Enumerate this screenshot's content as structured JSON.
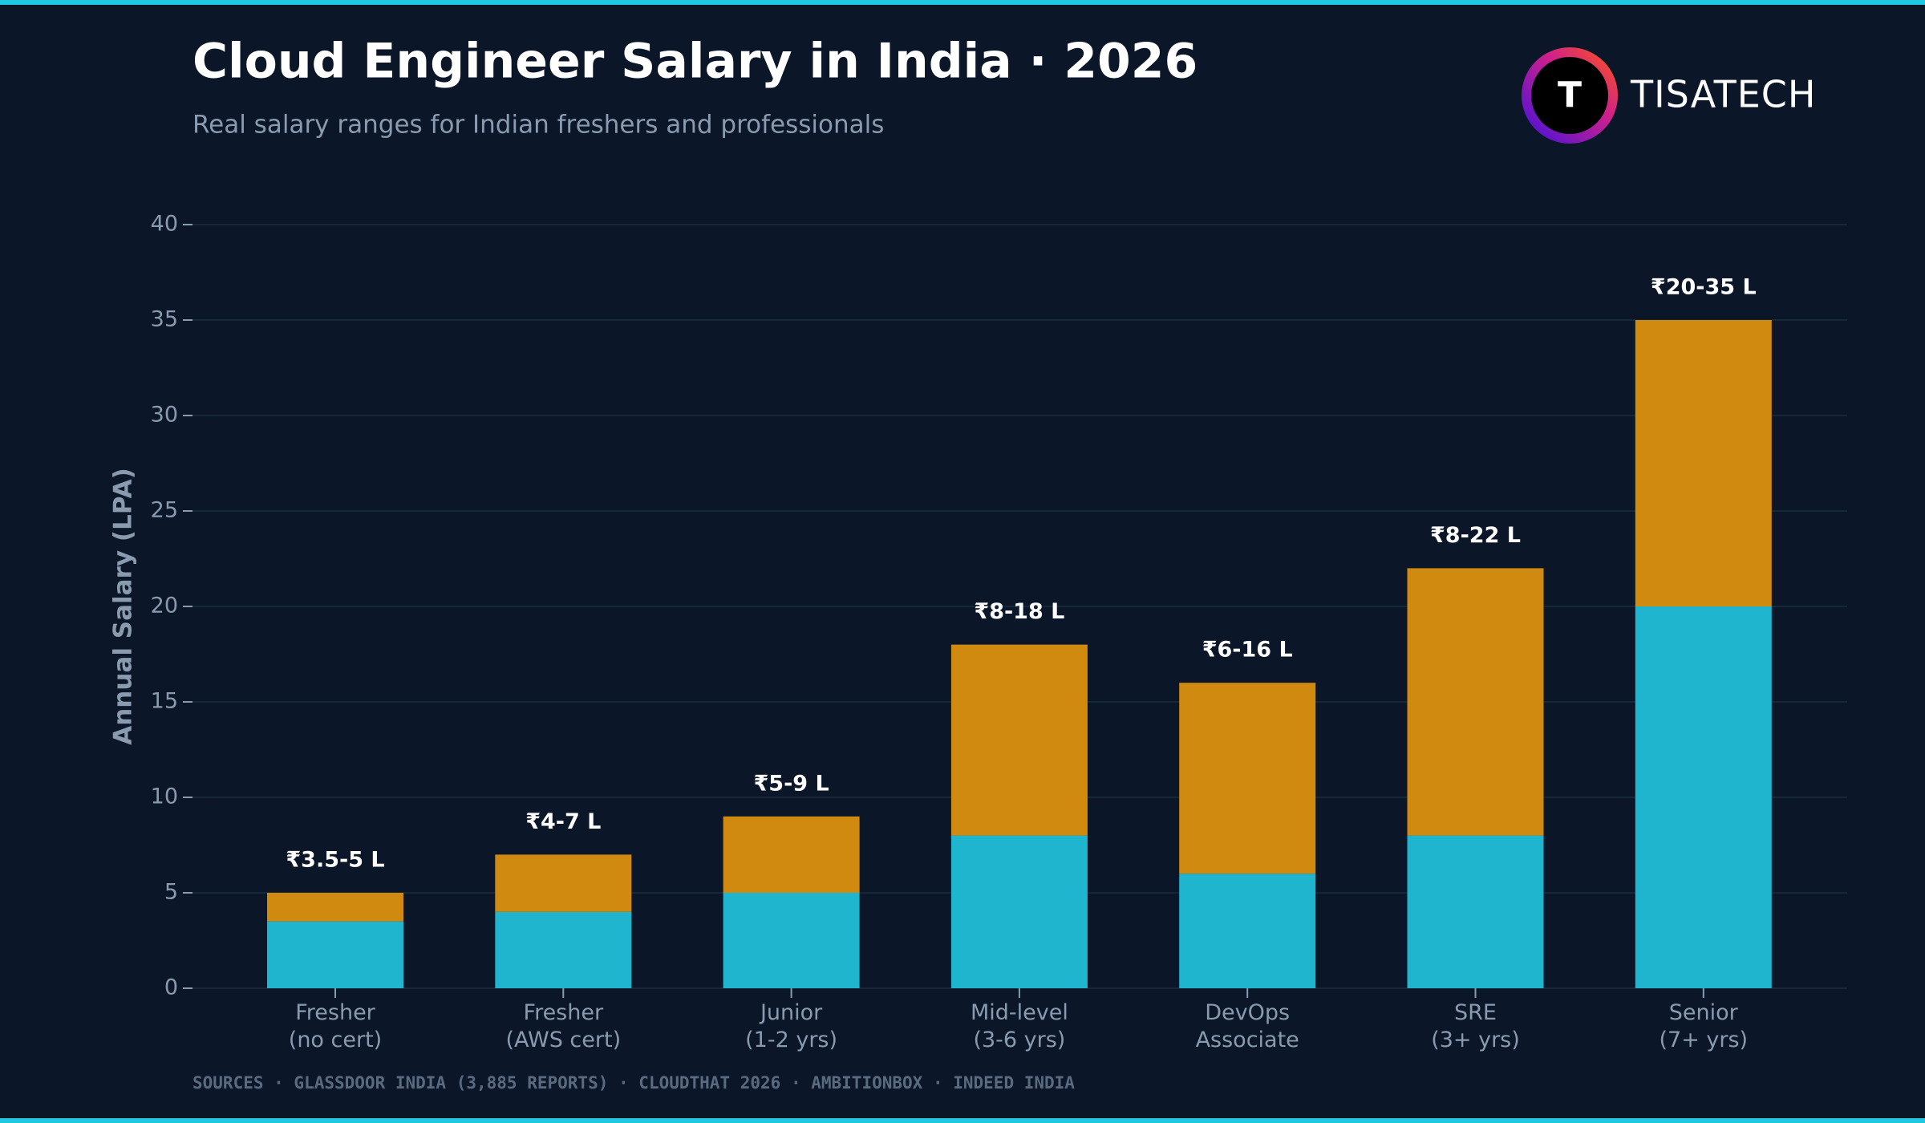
{
  "chart_data": {
    "type": "stacked_bar",
    "title": "Cloud Engineer Salary in India · 2026",
    "subtitle": "Real salary ranges for Indian freshers and professionals",
    "brand": "TISATECH",
    "brand_icon": "T",
    "y_label": "Annual Salary (LPA)",
    "source": "SOURCES · GLASSDOOR INDIA (3,885 REPORTS) · CLOUDTHAT 2026 · AMBITIONBOX · INDEED INDIA",
    "categories": [
      "Fresher\n(no cert)",
      "Fresher\n(AWS cert)",
      "Junior\n(1-2 yrs)",
      "Mid-level\n(3-6 yrs)",
      "DevOps\nAssociate",
      "SRE\n(3+ yrs)",
      "Senior\n(7+ yrs)"
    ],
    "series": [
      {
        "color": "#1fb5cf",
        "values": [
          3.5,
          4,
          5,
          8,
          6,
          8,
          20
        ]
      },
      {
        "color": "#d18a10",
        "values": [
          1.5,
          3,
          4,
          10,
          10,
          14,
          15
        ]
      }
    ],
    "bar_labels": [
      "₹3.5-5 L",
      "₹4-7 L",
      "₹5-9 L",
      "₹8-18 L",
      "₹6-16 L",
      "₹8-22 L",
      "₹20-35 L"
    ],
    "ylim": [
      0,
      40
    ],
    "yticks": [
      0,
      5,
      10,
      15,
      20,
      25,
      30,
      35,
      40
    ],
    "grid": true
  }
}
